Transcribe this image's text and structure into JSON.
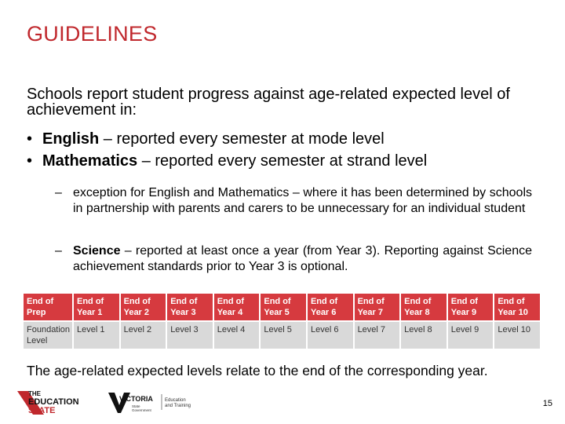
{
  "slide": {
    "title": "GUIDELINES",
    "intro": "Schools report student progress against age-related expected level of achievement  in:",
    "bullets": [
      {
        "bold": "English",
        "rest": " – reported every semester at mode level"
      },
      {
        "bold": "Mathematics",
        "rest": " – reported every semester at strand level"
      }
    ],
    "sub_points": [
      {
        "bold": "",
        "text": "exception for English and Mathematics – where it has been determined by schools in partnership with parents and carers to be unnecessary for an individual student"
      },
      {
        "bold": "Science",
        "text": " – reported at least once a year (from Year 3). Reporting against Science achievement standards prior to Year 3 is optional."
      }
    ],
    "table": {
      "header": [
        "End of Prep",
        "End of Year 1",
        "End of Year 2",
        "End of Year 3",
        "End of Year 4",
        "End of Year 5",
        "End of Year 6",
        "End of Year 7",
        "End of Year 8",
        "End of Year 9",
        "End of Year 10"
      ],
      "row": [
        "Foundation Level",
        "Level 1",
        "Level 2",
        "Level 3",
        "Level 4",
        "Level 5",
        "Level 6",
        "Level 7",
        "Level 8",
        "Level 9",
        "Level 10"
      ]
    },
    "footnote": "The age-related expected levels relate to the end of the corresponding year.",
    "page_number": "15"
  },
  "logos": {
    "education_state": {
      "line1": "THE",
      "line2": "EDUCATION",
      "line3": "STATE"
    },
    "victoria": {
      "name": "VICTORIA",
      "sub1": "State",
      "sub2": "Government",
      "dept1": "Education",
      "dept2": "and Training"
    }
  },
  "colors": {
    "accent": "#c0282d",
    "table_header": "#d63a3f",
    "table_row": "#d9d9d9"
  }
}
